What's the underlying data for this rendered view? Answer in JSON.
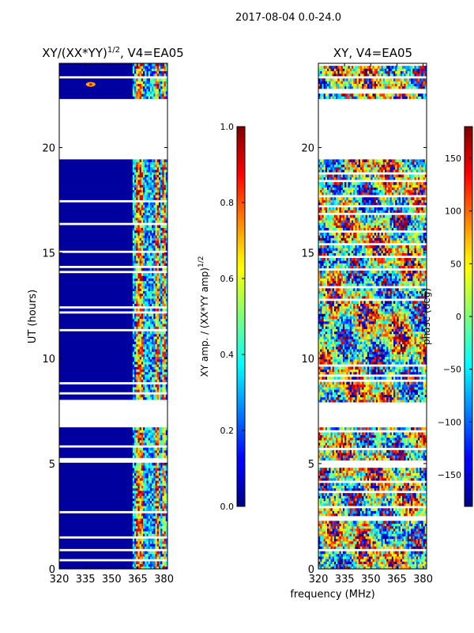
{
  "chart_data": {
    "type": "heatmap",
    "suptitle": "2017-08-04 0.0-24.0",
    "shared_xlabel": "frequency (MHz)",
    "panels": [
      {
        "id": "amp",
        "title": "XY/(XX*YY)",
        "title_sup": "1/2",
        "title_suffix": ", V4=EA05",
        "ylabel": "UT (hours)",
        "xlim": [
          320,
          382
        ],
        "ylim": [
          0,
          24
        ],
        "xticks": [
          320,
          335,
          350,
          365,
          380
        ],
        "yticks": [
          0,
          5,
          10,
          15,
          20
        ],
        "metric": "XY amplitude normalized by sqrt(XX*YY)",
        "bright_channels_mhz": [
          365,
          367,
          376,
          380
        ],
        "flag_ranges_hours": [
          [
            0.8,
            1.0
          ],
          [
            6.7,
            7.9
          ],
          [
            19.5,
            22.3
          ]
        ],
        "feature": {
          "label": "spot",
          "x": 338,
          "y": 23.0
        }
      },
      {
        "id": "phase",
        "title": "XY, V4=EA05",
        "ylabel": "",
        "xlim": [
          320,
          382
        ],
        "ylim": [
          0,
          24
        ],
        "xticks": [
          320,
          335,
          350,
          365,
          380
        ],
        "yticks": [
          0,
          5,
          10,
          15,
          20
        ],
        "metric": "XY phase (deg)"
      }
    ],
    "colorbars": [
      {
        "for": "amp",
        "label": "XY amp. / (XX*YY amp)",
        "label_sup": "1/2",
        "range": [
          0.0,
          1.0
        ],
        "ticks": [
          "0.0",
          "0.2",
          "0.4",
          "0.6",
          "0.8",
          "1.0"
        ],
        "tick_values": [
          0.0,
          0.2,
          0.4,
          0.6,
          0.8,
          1.0
        ],
        "colormap": "jet"
      },
      {
        "for": "phase",
        "label": "phase (deg)",
        "range": [
          -180,
          180
        ],
        "ticks": [
          "150",
          "100",
          "50",
          "0",
          "−50",
          "−100",
          "−150"
        ],
        "tick_values": [
          150,
          100,
          50,
          0,
          -50,
          -100,
          -150
        ],
        "colormap": "jet"
      }
    ]
  }
}
